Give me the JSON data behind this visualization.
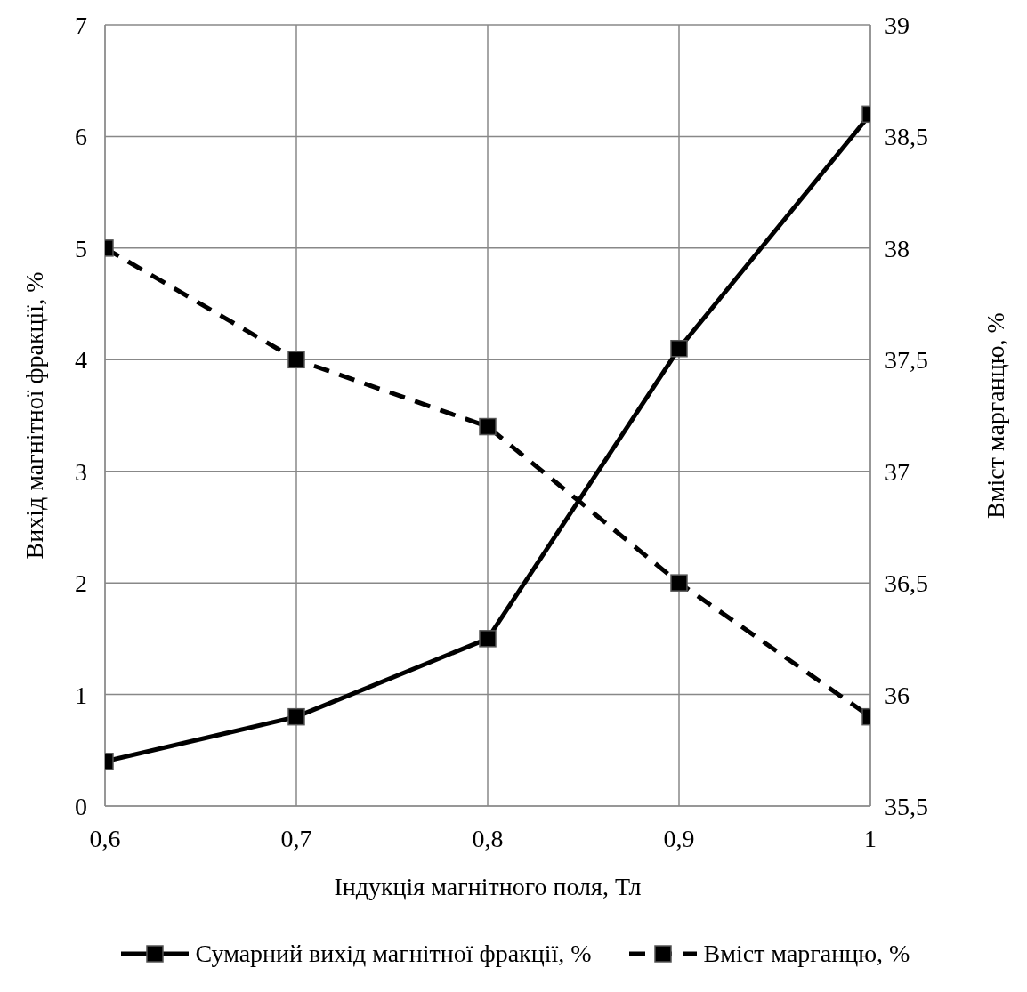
{
  "chart_data": {
    "type": "line",
    "xlabel": "Індукція магнітного поля, Тл",
    "ylabel": "Вихід магнітної фракції, %",
    "y2label": "Вміст марганцю, %",
    "x": [
      0.6,
      0.7,
      0.8,
      0.9,
      1
    ],
    "series": [
      {
        "name": "Сумарний вихід магнітної фракції, %",
        "color": "#000000",
        "values": [
          0.4,
          0.8,
          1.5,
          4.1,
          6.2
        ],
        "line_style": "solid"
      },
      {
        "name": "Вміст марганцю, %",
        "color": "#000000",
        "values": [
          38,
          37.5,
          37.2,
          36.5,
          35.9
        ],
        "axis": "y2",
        "line_style": "dashed"
      }
    ],
    "xlim": [
      0.6,
      1
    ],
    "xticks": [
      {
        "value": 0.6,
        "label": "0,6"
      },
      {
        "value": 0.7,
        "label": "0,7"
      },
      {
        "value": 0.8,
        "label": "0,8"
      },
      {
        "value": 0.9,
        "label": "0,9"
      },
      1
    ],
    "ylim": [
      0,
      7
    ],
    "yticks": [
      0,
      1,
      2,
      3,
      4,
      5,
      6,
      7
    ],
    "y2lim": [
      35.5,
      39
    ],
    "y2ticks": [
      {
        "value": 35.5,
        "label": "35,5"
      },
      36,
      {
        "value": 36.5,
        "label": "36,5"
      },
      37,
      {
        "value": 37.5,
        "label": "37,5"
      },
      38,
      {
        "value": 38.5,
        "label": "38,5"
      },
      39
    ],
    "grid": true,
    "marker": "square",
    "legend": "bottom"
  }
}
